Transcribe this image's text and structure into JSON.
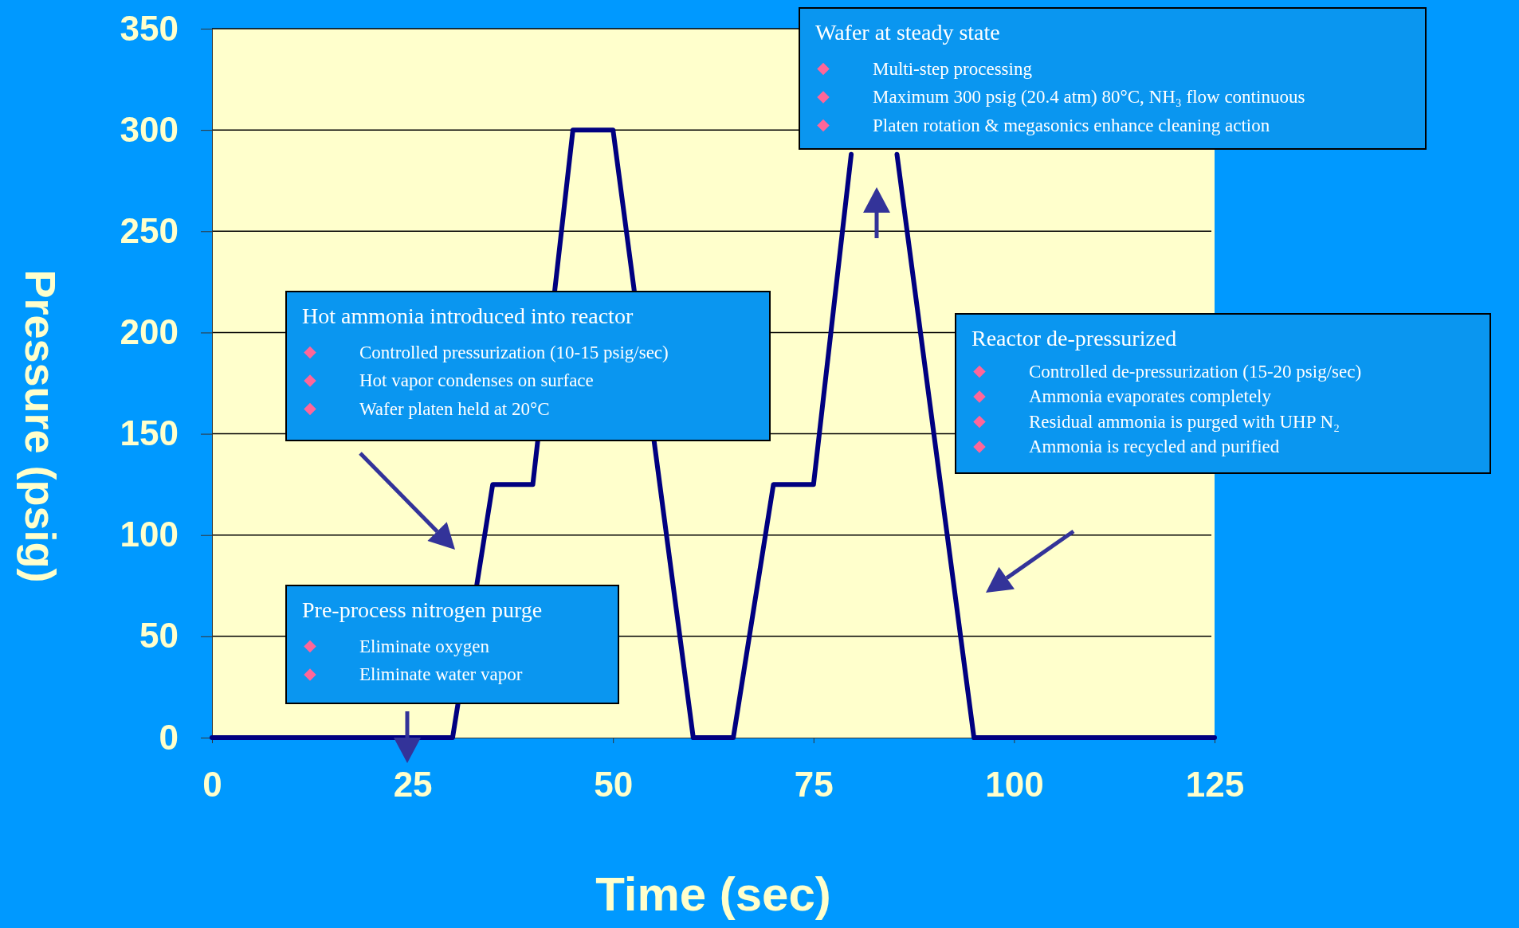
{
  "chart_data": {
    "type": "line",
    "xlabel": "Time (sec)",
    "ylabel": "Pressure (psig)",
    "x": [
      0,
      30,
      35,
      40,
      45,
      50,
      60,
      65,
      70,
      75,
      79.7,
      80,
      85,
      85.4,
      95,
      125
    ],
    "series": [
      {
        "color": "#000080",
        "values": [
          0,
          0,
          125,
          125,
          300,
          300,
          0,
          0,
          125,
          125,
          288,
          null,
          null,
          288,
          0,
          0
        ]
      }
    ],
    "xlim": [
      0,
      125
    ],
    "xticks": [
      0,
      25,
      50,
      75,
      100,
      125
    ],
    "ylim": [
      0,
      350
    ],
    "yticks": [
      0,
      50,
      100,
      150,
      200,
      250,
      300,
      350
    ],
    "grid": "y",
    "marker": "none",
    "line_style": "solid",
    "annotations": [
      "Wafer at steady state\nMulti-step processing\nMaximum 300 psig (20.4 atm) 80°C, NH₃ flow continuous\nPlaten rotation &  megasonics enhance cleaning action",
      "Hot ammonia introduced into reactor\nControlled pressurization (10-15 psig/sec)\nHot vapor condenses on surface\nWafer platen held at 20°C",
      "Reactor de-pressurized\nControlled de-pressurization (15-20 psig/sec)\nAmmonia evaporates completely\nResidual ammonia is purged with UHP N₂\nAmmonia is recycled and purified",
      "Pre-process nitrogen purge\nEliminate oxygen\nEliminate water vapor"
    ]
  }
}
